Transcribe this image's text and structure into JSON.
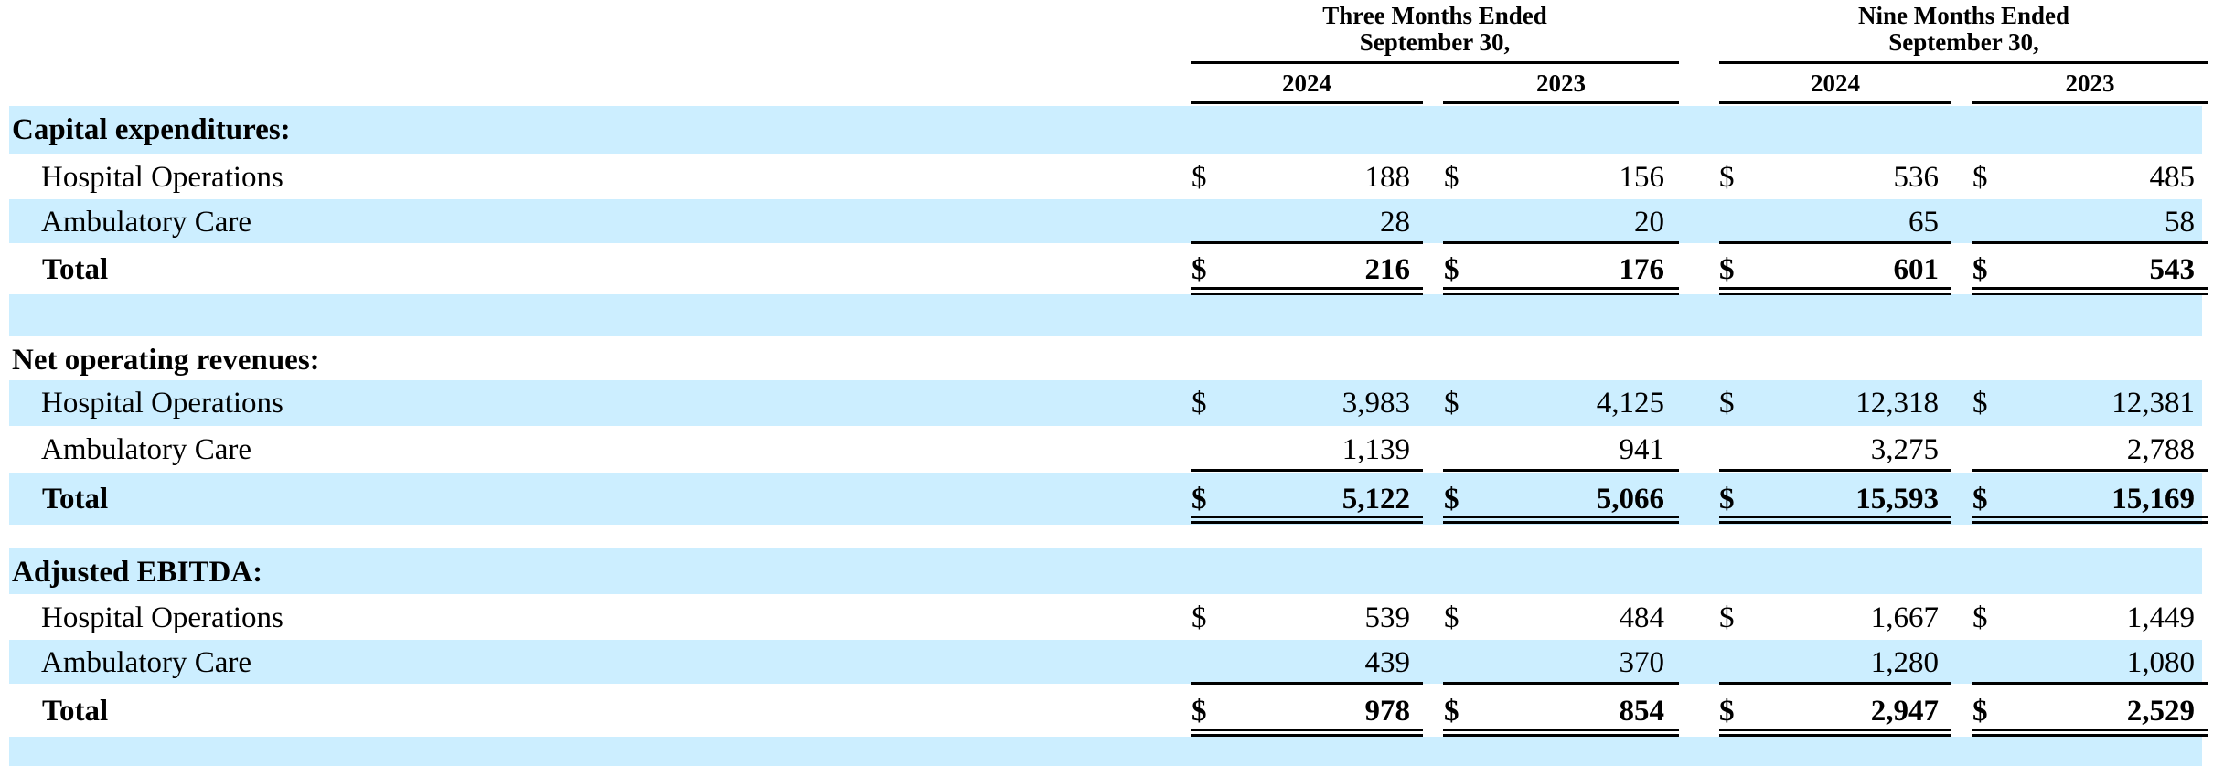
{
  "column_groups": [
    {
      "line1": "Three Months Ended",
      "line2": "September 30,"
    },
    {
      "line1": "Nine Months Ended",
      "line2": "September 30,"
    }
  ],
  "years": [
    "2024",
    "2023",
    "2024",
    "2023"
  ],
  "currency_symbol": "$",
  "band_color": "#cceeff",
  "sections": [
    {
      "title": "Capital expenditures:",
      "rows": [
        {
          "label": "Hospital Operations",
          "values": [
            "188",
            "156",
            "536",
            "485"
          ]
        },
        {
          "label": "Ambulatory Care",
          "values": [
            "28",
            "20",
            "65",
            "58"
          ]
        }
      ],
      "total": {
        "label": "Total",
        "values": [
          "216",
          "176",
          "601",
          "543"
        ]
      }
    },
    {
      "title": "Net operating revenues:",
      "rows": [
        {
          "label": "Hospital Operations",
          "values": [
            "3,983",
            "4,125",
            "12,318",
            "12,381"
          ]
        },
        {
          "label": "Ambulatory Care",
          "values": [
            "1,139",
            "941",
            "3,275",
            "2,788"
          ]
        }
      ],
      "total": {
        "label": "Total",
        "values": [
          "5,122",
          "5,066",
          "15,593",
          "15,169"
        ]
      }
    },
    {
      "title": "Adjusted EBITDA:",
      "rows": [
        {
          "label": "Hospital Operations",
          "values": [
            "539",
            "484",
            "1,667",
            "1,449"
          ]
        },
        {
          "label": "Ambulatory Care",
          "values": [
            "439",
            "370",
            "1,280",
            "1,080"
          ]
        }
      ],
      "total": {
        "label": "Total",
        "values": [
          "978",
          "854",
          "2,947",
          "2,529"
        ]
      }
    }
  ]
}
